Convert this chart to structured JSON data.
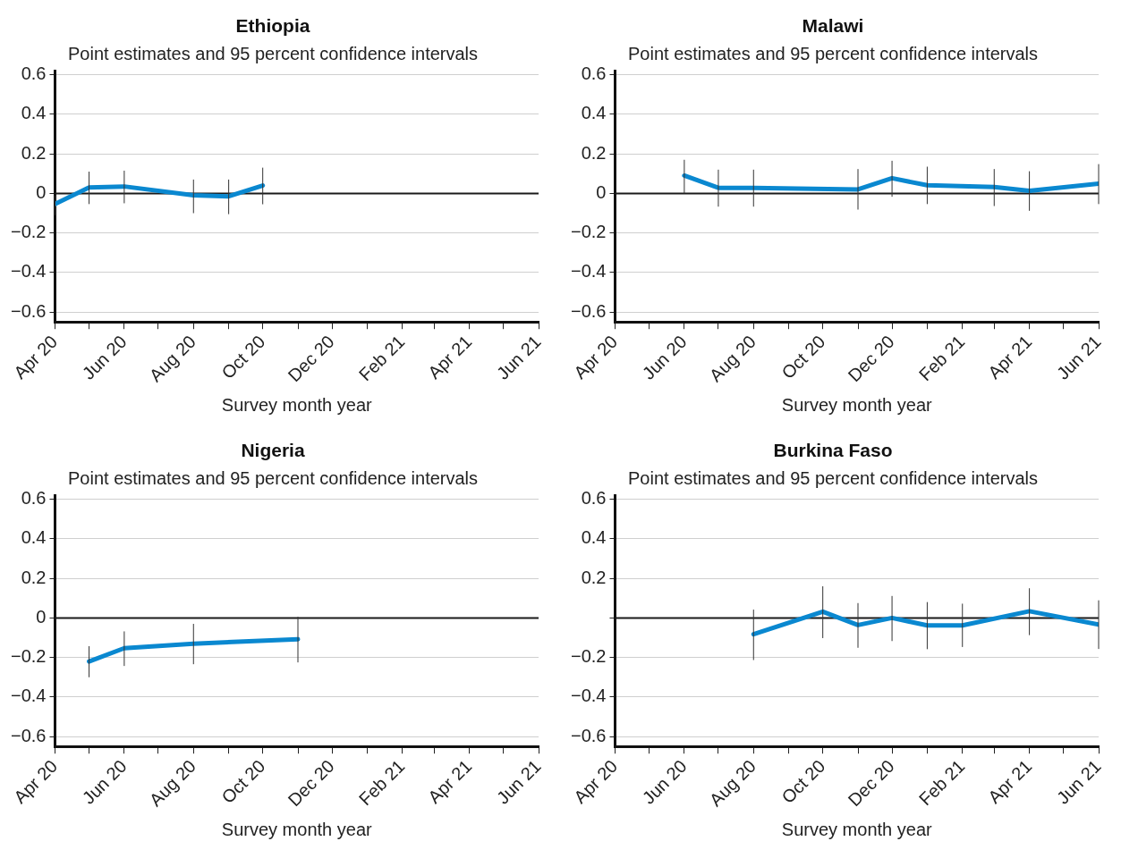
{
  "chart_data": [
    {
      "type": "line",
      "title": "Ethiopia",
      "subtitle": "Point estimates and 95 percent confidence intervals",
      "xlabel": "Survey month year",
      "grid": "y",
      "marker": "none",
      "legend": false,
      "xlim": [
        "2020-04",
        "2021-06"
      ],
      "xticks": [
        {
          "value": "2020-04",
          "label": "Apr 20"
        },
        {
          "value": "2020-05",
          "label": null
        },
        {
          "value": "2020-06",
          "label": "Jun 20"
        },
        {
          "value": "2020-07",
          "label": null
        },
        {
          "value": "2020-08",
          "label": "Aug 20"
        },
        {
          "value": "2020-09",
          "label": null
        },
        {
          "value": "2020-10",
          "label": "Oct 20"
        },
        {
          "value": "2020-11",
          "label": null
        },
        {
          "value": "2020-12",
          "label": "Dec 20"
        },
        {
          "value": "2021-01",
          "label": null
        },
        {
          "value": "2021-02",
          "label": "Feb 21"
        },
        {
          "value": "2021-03",
          "label": null
        },
        {
          "value": "2021-04",
          "label": "Apr 21"
        },
        {
          "value": "2021-05",
          "label": null
        },
        {
          "value": "2021-06",
          "label": "Jun 21"
        }
      ],
      "ylim": [
        -0.65,
        0.62
      ],
      "yticks": [
        {
          "value": -0.6,
          "label": "−0.6"
        },
        {
          "value": -0.4,
          "label": "−0.4"
        },
        {
          "value": -0.2,
          "label": "−0.2"
        },
        0,
        0.2,
        0.4,
        0.6
      ],
      "ref_lines": [
        {
          "axis": "y",
          "value": 0,
          "color": "#1a1a1a"
        }
      ],
      "series": [
        {
          "color": "#0a88d0",
          "x": [
            "2020-04",
            "2020-05",
            "2020-06",
            "2020-08",
            "2020-09",
            "2020-10"
          ],
          "values": [
            -0.054,
            0.03,
            0.035,
            -0.01,
            -0.015,
            0.04
          ],
          "errors": [
            [
              -0.11,
              -0.01
            ],
            [
              -0.054,
              0.11
            ],
            [
              -0.05,
              0.115
            ],
            [
              -0.1,
              0.07
            ],
            [
              -0.105,
              0.07
            ],
            [
              -0.055,
              0.13
            ]
          ]
        }
      ]
    },
    {
      "type": "line",
      "title": "Malawi",
      "subtitle": "Point estimates and 95 percent confidence intervals",
      "xlabel": "Survey month year",
      "grid": "y",
      "marker": "none",
      "legend": false,
      "xlim": [
        "2020-04",
        "2021-06"
      ],
      "xticks": [
        {
          "value": "2020-04",
          "label": "Apr 20"
        },
        {
          "value": "2020-05",
          "label": null
        },
        {
          "value": "2020-06",
          "label": "Jun 20"
        },
        {
          "value": "2020-07",
          "label": null
        },
        {
          "value": "2020-08",
          "label": "Aug 20"
        },
        {
          "value": "2020-09",
          "label": null
        },
        {
          "value": "2020-10",
          "label": "Oct 20"
        },
        {
          "value": "2020-11",
          "label": null
        },
        {
          "value": "2020-12",
          "label": "Dec 20"
        },
        {
          "value": "2021-01",
          "label": null
        },
        {
          "value": "2021-02",
          "label": "Feb 21"
        },
        {
          "value": "2021-03",
          "label": null
        },
        {
          "value": "2021-04",
          "label": "Apr 21"
        },
        {
          "value": "2021-05",
          "label": null
        },
        {
          "value": "2021-06",
          "label": "Jun 21"
        }
      ],
      "ylim": [
        -0.65,
        0.62
      ],
      "yticks": [
        {
          "value": -0.6,
          "label": "−0.6"
        },
        {
          "value": -0.4,
          "label": "−0.4"
        },
        {
          "value": -0.2,
          "label": "−0.2"
        },
        0,
        0.2,
        0.4,
        0.6
      ],
      "ref_lines": [
        {
          "axis": "y",
          "value": 0,
          "color": "#1a1a1a"
        }
      ],
      "series": [
        {
          "color": "#0a88d0",
          "x": [
            "2020-06",
            "2020-07",
            "2020-08",
            "2020-11",
            "2020-12",
            "2021-01",
            "2021-03",
            "2021-04",
            "2021-06"
          ],
          "values": [
            0.09,
            0.028,
            0.028,
            0.02,
            0.077,
            0.041,
            0.032,
            0.013,
            0.049
          ],
          "errors": [
            [
              0,
              0.17
            ],
            [
              -0.067,
              0.12
            ],
            [
              -0.067,
              0.12
            ],
            [
              -0.082,
              0.123
            ],
            [
              -0.017,
              0.165
            ],
            [
              -0.054,
              0.135
            ],
            [
              -0.064,
              0.123
            ],
            [
              -0.088,
              0.112
            ],
            [
              -0.054,
              0.148
            ]
          ]
        }
      ]
    },
    {
      "type": "line",
      "title": "Nigeria",
      "subtitle": "Point estimates and 95 percent confidence intervals",
      "xlabel": "Survey month year",
      "grid": "y",
      "marker": "none",
      "legend": false,
      "xlim": [
        "2020-04",
        "2021-06"
      ],
      "xticks": [
        {
          "value": "2020-04",
          "label": "Apr 20"
        },
        {
          "value": "2020-05",
          "label": null
        },
        {
          "value": "2020-06",
          "label": "Jun 20"
        },
        {
          "value": "2020-07",
          "label": null
        },
        {
          "value": "2020-08",
          "label": "Aug 20"
        },
        {
          "value": "2020-09",
          "label": null
        },
        {
          "value": "2020-10",
          "label": "Oct 20"
        },
        {
          "value": "2020-11",
          "label": null
        },
        {
          "value": "2020-12",
          "label": "Dec 20"
        },
        {
          "value": "2021-01",
          "label": null
        },
        {
          "value": "2021-02",
          "label": "Feb 21"
        },
        {
          "value": "2021-03",
          "label": null
        },
        {
          "value": "2021-04",
          "label": "Apr 21"
        },
        {
          "value": "2021-05",
          "label": null
        },
        {
          "value": "2021-06",
          "label": "Jun 21"
        }
      ],
      "ylim": [
        -0.65,
        0.62
      ],
      "yticks": [
        {
          "value": -0.6,
          "label": "−0.6"
        },
        {
          "value": -0.4,
          "label": "−0.4"
        },
        {
          "value": -0.2,
          "label": "−0.2"
        },
        0,
        0.2,
        0.4,
        0.6
      ],
      "ref_lines": [
        {
          "axis": "y",
          "value": 0,
          "color": "#1a1a1a"
        }
      ],
      "series": [
        {
          "color": "#0a88d0",
          "x": [
            "2020-05",
            "2020-06",
            "2020-08",
            "2020-11"
          ],
          "values": [
            -0.22,
            -0.153,
            -0.13,
            -0.108
          ],
          "errors": [
            [
              -0.3,
              -0.143
            ],
            [
              -0.243,
              -0.068
            ],
            [
              -0.234,
              -0.03
            ],
            [
              -0.225,
              0.006
            ]
          ]
        }
      ]
    },
    {
      "type": "line",
      "title": "Burkina Faso",
      "subtitle": "Point estimates and 95 percent confidence intervals",
      "xlabel": "Survey month year",
      "grid": "y",
      "marker": "none",
      "legend": false,
      "xlim": [
        "2020-04",
        "2021-06"
      ],
      "xticks": [
        {
          "value": "2020-04",
          "label": "Apr 20"
        },
        {
          "value": "2020-05",
          "label": null
        },
        {
          "value": "2020-06",
          "label": "Jun 20"
        },
        {
          "value": "2020-07",
          "label": null
        },
        {
          "value": "2020-08",
          "label": "Aug 20"
        },
        {
          "value": "2020-09",
          "label": null
        },
        {
          "value": "2020-10",
          "label": "Oct 20"
        },
        {
          "value": "2020-11",
          "label": null
        },
        {
          "value": "2020-12",
          "label": "Dec 20"
        },
        {
          "value": "2021-01",
          "label": null
        },
        {
          "value": "2021-02",
          "label": "Feb 21"
        },
        {
          "value": "2021-03",
          "label": null
        },
        {
          "value": "2021-04",
          "label": "Apr 21"
        },
        {
          "value": "2021-05",
          "label": null
        },
        {
          "value": "2021-06",
          "label": "Jun 21"
        }
      ],
      "ylim": [
        -0.65,
        0.62
      ],
      "yticks": [
        {
          "value": -0.6,
          "label": "−0.6"
        },
        {
          "value": -0.4,
          "label": "−0.4"
        },
        {
          "value": -0.2,
          "label": "−0.2"
        },
        {
          "value": 0,
          "label": null
        },
        0.2,
        0.4,
        0.6
      ],
      "ref_lines": [
        {
          "axis": "y",
          "value": 0,
          "color": "#1a1a1a"
        }
      ],
      "series": [
        {
          "color": "#0a88d0",
          "x": [
            "2020-08",
            "2020-10",
            "2020-11",
            "2020-12",
            "2021-01",
            "2021-02",
            "2021-04",
            "2021-06"
          ],
          "values": [
            -0.083,
            0.032,
            -0.036,
            0,
            -0.038,
            -0.038,
            0.034,
            -0.034
          ],
          "errors": [
            [
              -0.213,
              0.042
            ],
            [
              -0.102,
              0.16
            ],
            [
              -0.151,
              0.075
            ],
            [
              -0.117,
              0.111
            ],
            [
              -0.158,
              0.08
            ],
            [
              -0.147,
              0.072
            ],
            [
              -0.087,
              0.15
            ],
            [
              -0.157,
              0.089
            ]
          ]
        }
      ]
    }
  ]
}
